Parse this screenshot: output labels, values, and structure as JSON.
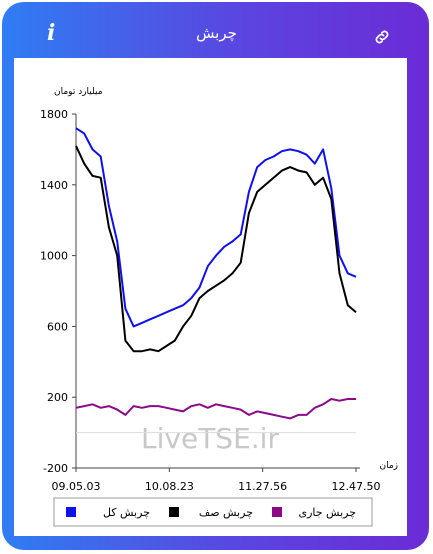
{
  "header": {
    "title": "چربش",
    "info_label": "i",
    "link_icon": "link-icon"
  },
  "colors": {
    "total": "#1010ee",
    "queue": "#000000",
    "current": "#8a0a8a",
    "accent_from": "#2f7df4",
    "accent_to": "#6b2bd6"
  },
  "watermark": "LiveTSE.ir",
  "chart_data": {
    "type": "line",
    "title": "",
    "ylabel": "میلیارد تومان",
    "xlabel": "زمان",
    "ylim": [
      -200,
      1800
    ],
    "yticks": [
      "1800",
      "1400",
      "1000",
      "600",
      "200",
      "-200"
    ],
    "xticks": [
      "09.05.03",
      "10.08.23",
      "11.27.56",
      "12.47.50"
    ],
    "grid": false,
    "legend_position": "bottom",
    "series": [
      {
        "name": "چربش کل",
        "values": [
          1720,
          1690,
          1600,
          1560,
          1280,
          1080,
          700,
          600,
          620,
          640,
          660,
          680,
          700,
          720,
          760,
          820,
          940,
          1000,
          1050,
          1080,
          1120,
          1360,
          1500,
          1540,
          1560,
          1590,
          1600,
          1590,
          1570,
          1520,
          1600,
          1380,
          1000,
          900,
          880
        ]
      },
      {
        "name": "چربش صف",
        "values": [
          1620,
          1520,
          1450,
          1440,
          1160,
          1000,
          520,
          460,
          460,
          470,
          460,
          490,
          520,
          600,
          660,
          760,
          800,
          830,
          860,
          900,
          960,
          1240,
          1360,
          1400,
          1440,
          1480,
          1500,
          1480,
          1470,
          1400,
          1440,
          1320,
          900,
          720,
          680
        ]
      },
      {
        "name": "چربش جاری",
        "values": [
          140,
          150,
          160,
          140,
          150,
          130,
          100,
          150,
          140,
          150,
          150,
          140,
          130,
          120,
          150,
          160,
          140,
          160,
          150,
          140,
          130,
          100,
          120,
          110,
          100,
          90,
          80,
          100,
          100,
          140,
          160,
          190,
          180,
          190,
          190
        ]
      }
    ]
  }
}
